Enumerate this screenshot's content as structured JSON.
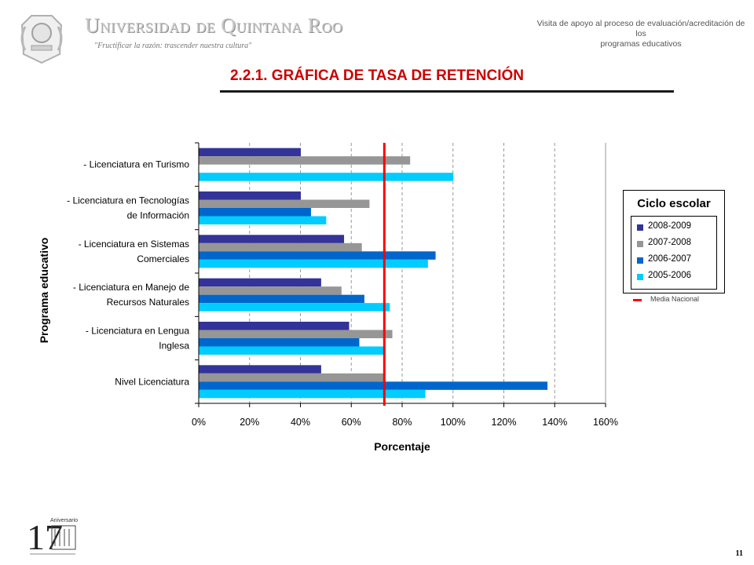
{
  "header": {
    "university": "Universidad de Quintana Roo",
    "motto": "\"Fructificar la razón: trascender nuestra cultura\"",
    "right_line1": "Visita de apoyo al proceso de evaluación/acreditación de los",
    "right_line2": "programas educativos"
  },
  "title": "2.2.1.  GRÁFICA DE TASA DE RETENCIÓN",
  "colors": {
    "title": "#cc0000",
    "series_2008_2009": "#333399",
    "series_2007_2008": "#969696",
    "series_2006_2007": "#0066cc",
    "series_2005_2006": "#00ccff",
    "media_nacional": "#ff0000"
  },
  "chart_data": {
    "type": "bar",
    "orientation": "horizontal",
    "categories": [
      [
        "- Licenciatura en Turismo"
      ],
      [
        "- Licenciatura en Tecnologías",
        "de Información"
      ],
      [
        "- Licenciatura en Sistemas",
        "Comerciales"
      ],
      [
        "- Licenciatura en Manejo de",
        "Recursos Naturales"
      ],
      [
        "- Licenciatura en Lengua",
        "Inglesa"
      ],
      [
        "Nivel Licenciatura"
      ]
    ],
    "series": [
      {
        "name": "2008-2009",
        "color": "#333399",
        "values": [
          40,
          40,
          57,
          48,
          59,
          48
        ]
      },
      {
        "name": "2007-2008",
        "color": "#969696",
        "values": [
          83,
          67,
          64,
          56,
          76,
          73
        ]
      },
      {
        "name": "2006-2007",
        "color": "#0066cc",
        "values": [
          0,
          44,
          93,
          65,
          63,
          137
        ]
      },
      {
        "name": "2005-2006",
        "color": "#00ccff",
        "values": [
          100,
          50,
          90,
          75,
          73,
          89
        ]
      }
    ],
    "xlabel": "Porcentaje",
    "ylabel": "Programa educativo",
    "xlim": [
      0,
      160
    ],
    "xticks": [
      "0%",
      "20%",
      "40%",
      "60%",
      "80%",
      "100%",
      "120%",
      "140%",
      "160%"
    ],
    "grid": "vertical dashed",
    "reference_line": {
      "label": "Media Nacional",
      "value": 73,
      "color": "#ff0000"
    },
    "legend": {
      "title": "Ciclo escolar",
      "position": "right"
    }
  },
  "footer": {
    "anniversary_number": "17",
    "anniversary_word": "Aniversario",
    "page_number": "11"
  }
}
